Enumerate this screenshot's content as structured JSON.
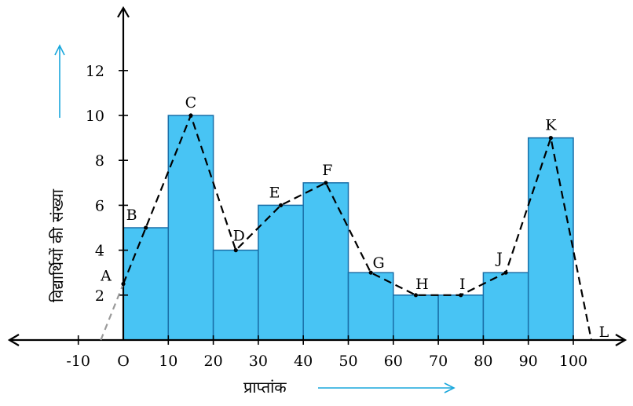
{
  "chart_data": {
    "type": "bar",
    "xlabel": "प्राप्तांक",
    "ylabel": "विद्यार्थियों की संख्या",
    "x_ticks": [
      -10,
      0,
      10,
      20,
      30,
      40,
      50,
      60,
      70,
      80,
      90,
      100
    ],
    "x_tick_labels": [
      "-10",
      "O",
      "10",
      "20",
      "30",
      "40",
      "50",
      "60",
      "70",
      "80",
      "90",
      "100"
    ],
    "y_ticks": [
      2,
      4,
      6,
      8,
      10,
      12
    ],
    "y_tick_labels": [
      "2",
      "4",
      "6",
      "8",
      "10",
      "12"
    ],
    "xlim": [
      -26,
      112
    ],
    "ylim": [
      0,
      14.2
    ],
    "grid": false,
    "bin_width": 10,
    "bins": [
      {
        "start": 0,
        "end": 10,
        "value": 5
      },
      {
        "start": 10,
        "end": 20,
        "value": 10
      },
      {
        "start": 20,
        "end": 30,
        "value": 4
      },
      {
        "start": 30,
        "end": 40,
        "value": 6
      },
      {
        "start": 40,
        "end": 50,
        "value": 7
      },
      {
        "start": 50,
        "end": 60,
        "value": 3
      },
      {
        "start": 60,
        "end": 70,
        "value": 2
      },
      {
        "start": 70,
        "end": 80,
        "value": 2
      },
      {
        "start": 80,
        "end": 90,
        "value": 3
      },
      {
        "start": 90,
        "end": 100,
        "value": 9
      }
    ],
    "polygon": [
      {
        "label": "A",
        "x": 0,
        "y": 2.5
      },
      {
        "label": "B",
        "x": 5,
        "y": 5
      },
      {
        "label": "C",
        "x": 15,
        "y": 10
      },
      {
        "label": "D",
        "x": 25,
        "y": 4
      },
      {
        "label": "E",
        "x": 35,
        "y": 6
      },
      {
        "label": "F",
        "x": 45,
        "y": 7
      },
      {
        "label": "G",
        "x": 55,
        "y": 3
      },
      {
        "label": "H",
        "x": 65,
        "y": 2
      },
      {
        "label": "I",
        "x": 75,
        "y": 2
      },
      {
        "label": "J",
        "x": 85,
        "y": 3
      },
      {
        "label": "K",
        "x": 95,
        "y": 9
      },
      {
        "label": "L",
        "x": 104,
        "y": 0
      }
    ],
    "polygon_extension": [
      {
        "x": -5,
        "y": 0
      },
      {
        "x": 0,
        "y": 2.5
      }
    ],
    "colors": {
      "bar_fill": "#48c4f4",
      "bar_stroke": "#1a6fa8",
      "axis_arrow_accent": "#19a7dc"
    }
  }
}
